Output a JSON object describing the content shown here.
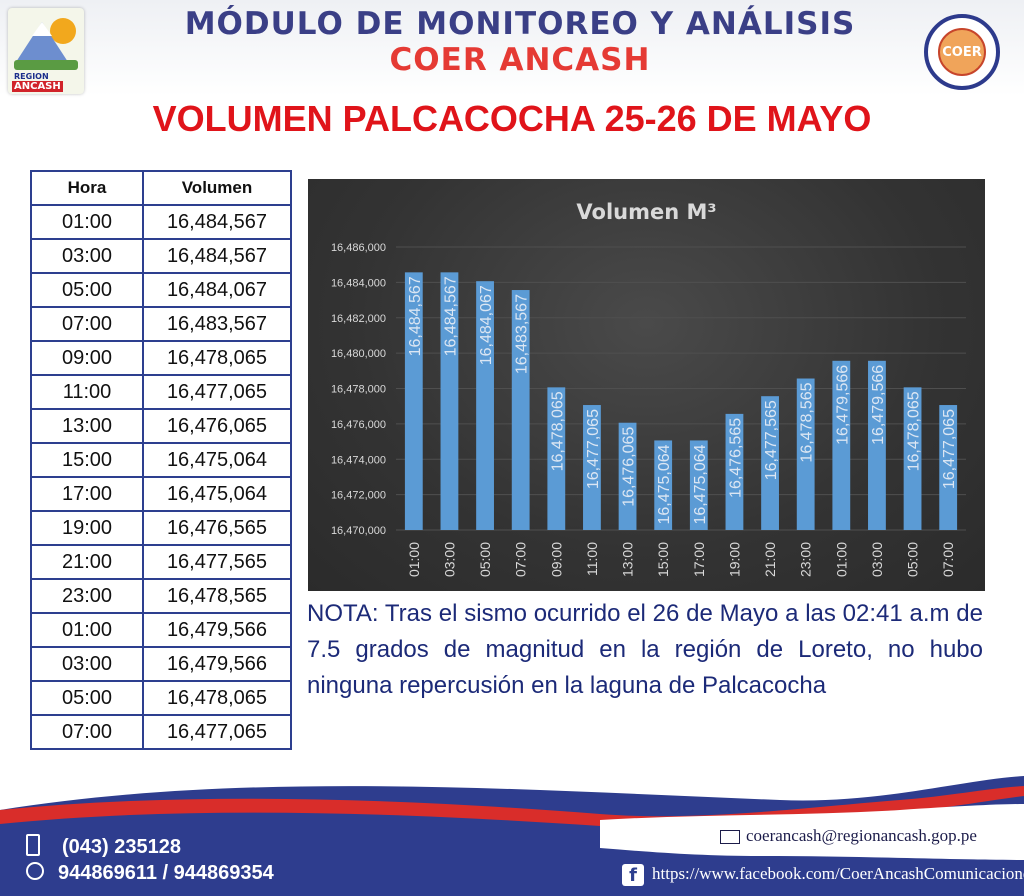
{
  "header": {
    "title_line1": "MÓDULO DE MONITOREO Y ANÁLISIS",
    "title_line2": "COER ANCASH",
    "left_logo_text1": "REGION",
    "left_logo_text2": "ANCASH",
    "right_logo_text": "COER"
  },
  "main_title": "VOLUMEN PALCACOCHA 25-26 DE MAYO",
  "table": {
    "headers": [
      "Hora",
      "Volumen"
    ],
    "rows": [
      [
        "01:00",
        "16,484,567"
      ],
      [
        "03:00",
        "16,484,567"
      ],
      [
        "05:00",
        "16,484,067"
      ],
      [
        "07:00",
        "16,483,567"
      ],
      [
        "09:00",
        "16,478,065"
      ],
      [
        "11:00",
        "16,477,065"
      ],
      [
        "13:00",
        "16,476,065"
      ],
      [
        "15:00",
        "16,475,064"
      ],
      [
        "17:00",
        "16,475,064"
      ],
      [
        "19:00",
        "16,476,565"
      ],
      [
        "21:00",
        "16,477,565"
      ],
      [
        "23:00",
        "16,478,565"
      ],
      [
        "01:00",
        "16,479,566"
      ],
      [
        "03:00",
        "16,479,566"
      ],
      [
        "05:00",
        "16,478,065"
      ],
      [
        "07:00",
        "16,477,065"
      ]
    ]
  },
  "chart_data": {
    "type": "bar",
    "title": "Volumen M³",
    "categories": [
      "01:00",
      "03:00",
      "05:00",
      "07:00",
      "09:00",
      "11:00",
      "13:00",
      "15:00",
      "17:00",
      "19:00",
      "21:00",
      "23:00",
      "01:00",
      "03:00",
      "05:00",
      "07:00"
    ],
    "values": [
      16484567,
      16484567,
      16484067,
      16483567,
      16478065,
      16477065,
      16476065,
      16475064,
      16475064,
      16476565,
      16477565,
      16478565,
      16479566,
      16479566,
      16478065,
      16477065
    ],
    "value_labels": [
      "16,484,567",
      "16,484,567",
      "16,484,067",
      "16,483,567",
      "16,478,065",
      "16,477,065",
      "16,476,065",
      "16,475,064",
      "16,475,064",
      "16,476,565",
      "16,477,565",
      "16,478,565",
      "16,479,566",
      "16,479,566",
      "16,478,065",
      "16,477,065"
    ],
    "ylim": [
      16470000,
      16486000
    ],
    "yticks": [
      16470000,
      16472000,
      16474000,
      16476000,
      16478000,
      16480000,
      16482000,
      16484000,
      16486000
    ],
    "ytick_labels": [
      "16,470,000",
      "16,472,000",
      "16,474,000",
      "16,476,000",
      "16,478,000",
      "16,480,000",
      "16,482,000",
      "16,484,000",
      "16,486,000"
    ],
    "xlabel": "",
    "ylabel": "",
    "grid": true,
    "legend": "none",
    "colors": {
      "bar": "#5b9bd5",
      "background": "#3a3a3a",
      "text": "#d9d9d9"
    }
  },
  "note": "NOTA: Tras el sismo ocurrido el  26 de Mayo a las 02:41 a.m de 7.5 grados de magnitud en la región de Loreto, no hubo ninguna repercusión en la laguna de Palcacocha",
  "footer": {
    "phone1": "(043) 235128",
    "phone2": "944869611 / 944869354",
    "email": "coerancash@regionancash.gop.pe",
    "facebook": "https://www.facebook.com/CoerAncashComunicaciones/",
    "phone_icon": "phone-icon",
    "whatsapp_icon": "whatsapp-icon",
    "mail_icon": "mail-icon",
    "facebook_icon": "facebook-icon"
  }
}
